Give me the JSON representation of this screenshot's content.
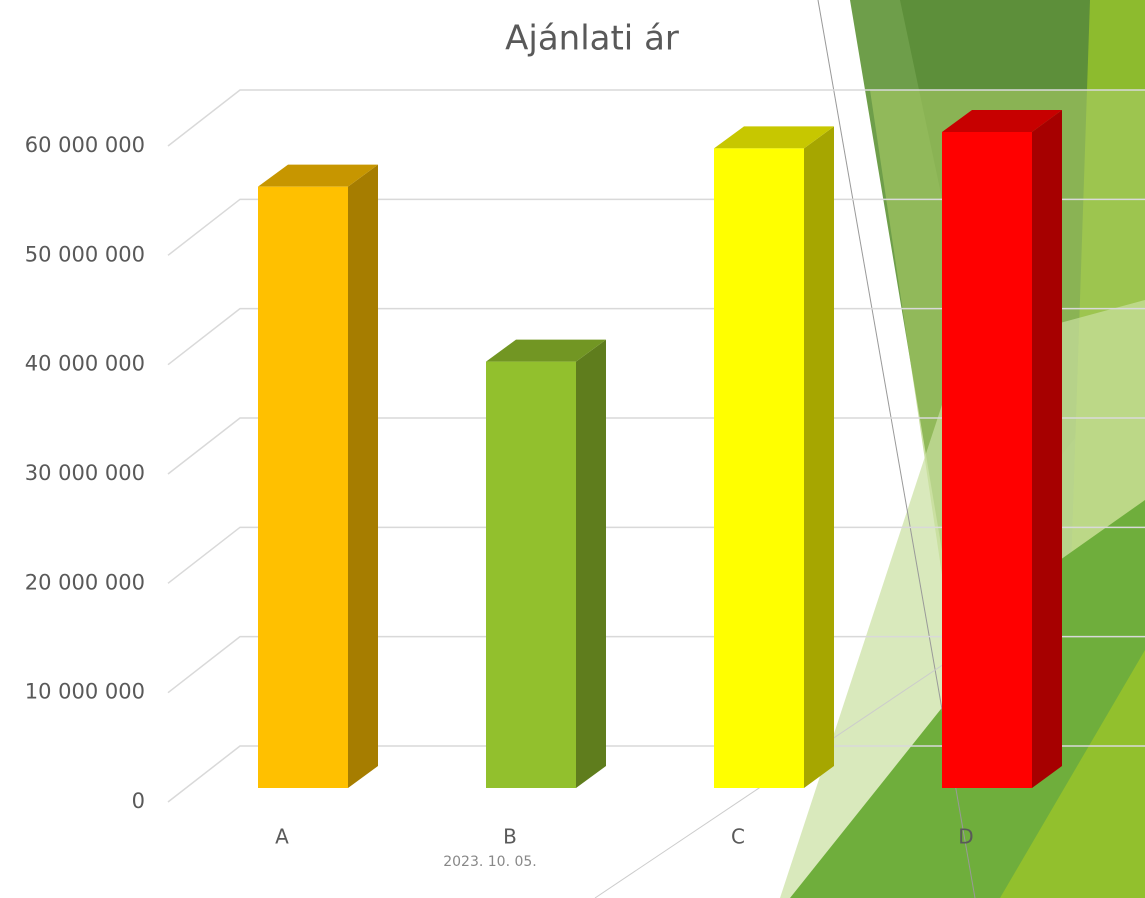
{
  "chart_data": {
    "type": "bar3d",
    "title": "Ajánlati ár",
    "categories": [
      "A",
      "B",
      "C",
      "D"
    ],
    "values": [
      55000000,
      39000000,
      58500000,
      60000000
    ],
    "colors": [
      "#ffc000",
      "#92c02d",
      "#ffff00",
      "#ff0000"
    ],
    "ylim": [
      0,
      60000000
    ],
    "yticks": [
      0,
      {
        "value": 10000000,
        "label": "10 000 000"
      },
      {
        "value": 20000000,
        "label": "20 000 000"
      },
      {
        "value": 30000000,
        "label": "30 000 000"
      },
      {
        "value": 40000000,
        "label": "40 000 000"
      },
      {
        "value": 50000000,
        "label": "50 000 000"
      },
      {
        "value": 60000000,
        "label": "60 000 000"
      }
    ],
    "grid": true
  },
  "footer": {
    "date": "2023. 10. 05."
  }
}
